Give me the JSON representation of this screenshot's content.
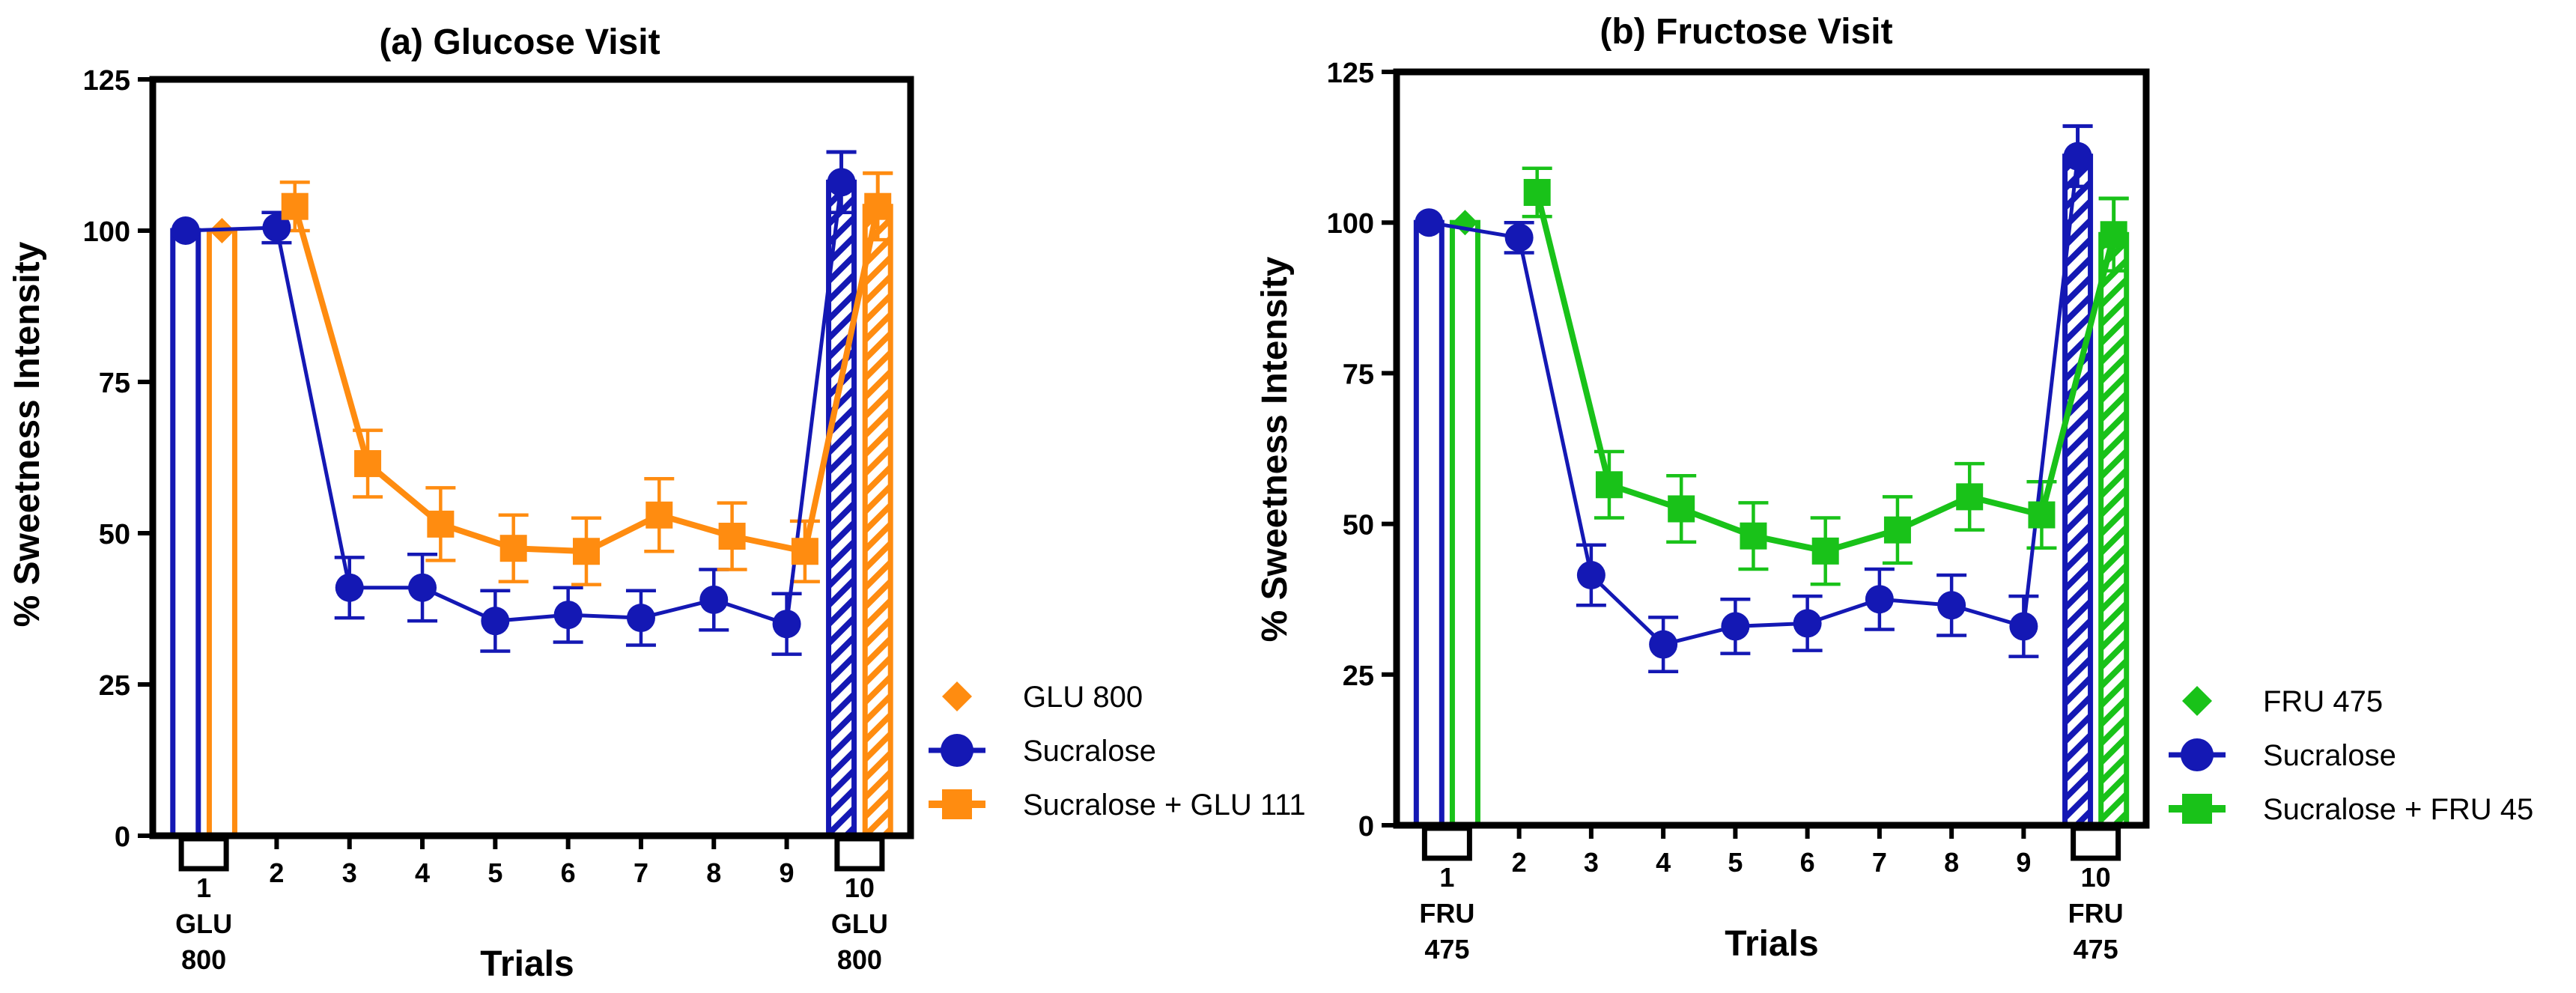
{
  "colors": {
    "sucralose": "#1418b4",
    "glucose": "#ff8c10",
    "fructose": "#19c219",
    "axis": "#000000"
  },
  "chart_data": [
    {
      "type": "line",
      "title": "(a) Glucose Visit",
      "ylabel": "%  Sweetness Intensity",
      "xlabel": "Trials",
      "ylim": [
        0,
        125
      ],
      "yticks": [
        "0",
        "25",
        "50",
        "75",
        "100",
        "125"
      ],
      "xlim": [
        0.3,
        10.7
      ],
      "x_ticks": [
        {
          "x": 1,
          "lines": [
            "1",
            "GLU",
            "800"
          ]
        },
        {
          "x": 2,
          "lines": [
            "2"
          ]
        },
        {
          "x": 3,
          "lines": [
            "3"
          ]
        },
        {
          "x": 4,
          "lines": [
            "4"
          ]
        },
        {
          "x": 5,
          "lines": [
            "5"
          ]
        },
        {
          "x": 6,
          "lines": [
            "6"
          ]
        },
        {
          "x": 7,
          "lines": [
            "7"
          ]
        },
        {
          "x": 8,
          "lines": [
            "8"
          ]
        },
        {
          "x": 9,
          "lines": [
            "9"
          ]
        },
        {
          "x": 10,
          "lines": [
            "10",
            "GLU",
            "800"
          ]
        }
      ],
      "boxed_ticks": [
        1,
        10
      ],
      "bars": [
        {
          "x": 1,
          "offset": -0.25,
          "value": 100,
          "series": "Sucralose",
          "hatched": false
        },
        {
          "x": 1,
          "offset": 0.25,
          "value": 100,
          "series": "GLU 800",
          "hatched": false
        },
        {
          "x": 10,
          "offset": -0.25,
          "value": 108,
          "err": 5,
          "series": "Sucralose",
          "hatched": true
        },
        {
          "x": 10,
          "offset": 0.25,
          "value": 104,
          "err": 5.5,
          "series": "GLU 800",
          "hatched": true
        }
      ],
      "series": [
        {
          "name": "GLU 800",
          "marker": "diamond",
          "line": false,
          "color_key": "glucose",
          "points": [
            [
              1.25,
              100
            ]
          ]
        },
        {
          "name": "Sucralose",
          "marker": "circle",
          "line": true,
          "color_key": "sucralose",
          "points": [
            [
              0.75,
              100
            ],
            [
              2,
              100.5
            ],
            [
              3,
              41
            ],
            [
              4,
              41
            ],
            [
              5,
              35.5
            ],
            [
              6,
              36.5
            ],
            [
              7,
              36
            ],
            [
              8,
              39
            ],
            [
              9,
              35
            ],
            [
              9.75,
              108
            ]
          ],
          "errors": [
            0,
            2.5,
            5,
            5.5,
            5,
            4.5,
            4.5,
            5,
            5,
            5
          ]
        },
        {
          "name": "Sucralose + GLU 111",
          "marker": "square",
          "line": true,
          "color_key": "glucose",
          "points": [
            [
              2.25,
              104
            ],
            [
              3.25,
              61.5
            ],
            [
              4.25,
              51.5
            ],
            [
              5.25,
              47.5
            ],
            [
              6.25,
              47
            ],
            [
              7.25,
              53
            ],
            [
              8.25,
              49.5
            ],
            [
              9.25,
              47
            ],
            [
              10.25,
              104
            ]
          ],
          "errors": [
            4,
            5.5,
            6,
            5.5,
            5.5,
            6,
            5.5,
            5,
            5.5
          ]
        }
      ],
      "legend": [
        {
          "label": "GLU 800",
          "marker": "diamond",
          "color_key": "glucose",
          "line": false
        },
        {
          "label": "Sucralose",
          "marker": "circle",
          "color_key": "sucralose",
          "line": true
        },
        {
          "label": "Sucralose + GLU 111",
          "marker": "square",
          "color_key": "glucose",
          "line": true
        }
      ]
    },
    {
      "type": "line",
      "title": "(b) Fructose Visit",
      "ylabel": "%  Sweetness Intensity",
      "xlabel": "Trials",
      "ylim": [
        0,
        125
      ],
      "yticks": [
        "0",
        "25",
        "50",
        "75",
        "100",
        "125"
      ],
      "xlim": [
        0.3,
        10.7
      ],
      "x_ticks": [
        {
          "x": 1,
          "lines": [
            "1",
            "FRU",
            "475"
          ]
        },
        {
          "x": 2,
          "lines": [
            "2"
          ]
        },
        {
          "x": 3,
          "lines": [
            "3"
          ]
        },
        {
          "x": 4,
          "lines": [
            "4"
          ]
        },
        {
          "x": 5,
          "lines": [
            "5"
          ]
        },
        {
          "x": 6,
          "lines": [
            "6"
          ]
        },
        {
          "x": 7,
          "lines": [
            "7"
          ]
        },
        {
          "x": 8,
          "lines": [
            "8"
          ]
        },
        {
          "x": 9,
          "lines": [
            "9"
          ]
        },
        {
          "x": 10,
          "lines": [
            "10",
            "FRU",
            "475"
          ]
        }
      ],
      "boxed_ticks": [
        1,
        10
      ],
      "bars": [
        {
          "x": 1,
          "offset": -0.25,
          "value": 100,
          "series": "Sucralose",
          "hatched": false
        },
        {
          "x": 1,
          "offset": 0.25,
          "value": 100,
          "series": "FRU 475",
          "hatched": false
        },
        {
          "x": 10,
          "offset": -0.25,
          "value": 111,
          "err": 5,
          "series": "Sucralose",
          "hatched": true
        },
        {
          "x": 10,
          "offset": 0.25,
          "value": 98,
          "err": 6,
          "series": "FRU 475",
          "hatched": true
        }
      ],
      "series": [
        {
          "name": "FRU 475",
          "marker": "diamond",
          "line": false,
          "color_key": "fructose",
          "points": [
            [
              1.25,
              100
            ]
          ]
        },
        {
          "name": "Sucralose",
          "marker": "circle",
          "line": true,
          "color_key": "sucralose",
          "points": [
            [
              0.75,
              100
            ],
            [
              2,
              97.5
            ],
            [
              3,
              41.5
            ],
            [
              4,
              30
            ],
            [
              5,
              33
            ],
            [
              6,
              33.5
            ],
            [
              7,
              37.5
            ],
            [
              8,
              36.5
            ],
            [
              9,
              33
            ],
            [
              9.75,
              111
            ]
          ],
          "errors": [
            0,
            2.5,
            5,
            4.5,
            4.5,
            4.5,
            5,
            5,
            5,
            5
          ]
        },
        {
          "name": "Sucralose + FRU 45",
          "marker": "square",
          "line": true,
          "color_key": "fructose",
          "points": [
            [
              2.25,
              105
            ],
            [
              3.25,
              56.5
            ],
            [
              4.25,
              52.5
            ],
            [
              5.25,
              48
            ],
            [
              6.25,
              45.5
            ],
            [
              7.25,
              49
            ],
            [
              8.25,
              54.5
            ],
            [
              9.25,
              51.5
            ],
            [
              10.25,
              98
            ]
          ],
          "errors": [
            4,
            5.5,
            5.5,
            5.5,
            5.5,
            5.5,
            5.5,
            5.5,
            6
          ]
        }
      ],
      "legend": [
        {
          "label": "FRU 475",
          "marker": "diamond",
          "color_key": "fructose",
          "line": false
        },
        {
          "label": "Sucralose",
          "marker": "circle",
          "color_key": "sucralose",
          "line": true
        },
        {
          "label": "Sucralose + FRU 45",
          "marker": "square",
          "color_key": "fructose",
          "line": true
        }
      ]
    }
  ]
}
